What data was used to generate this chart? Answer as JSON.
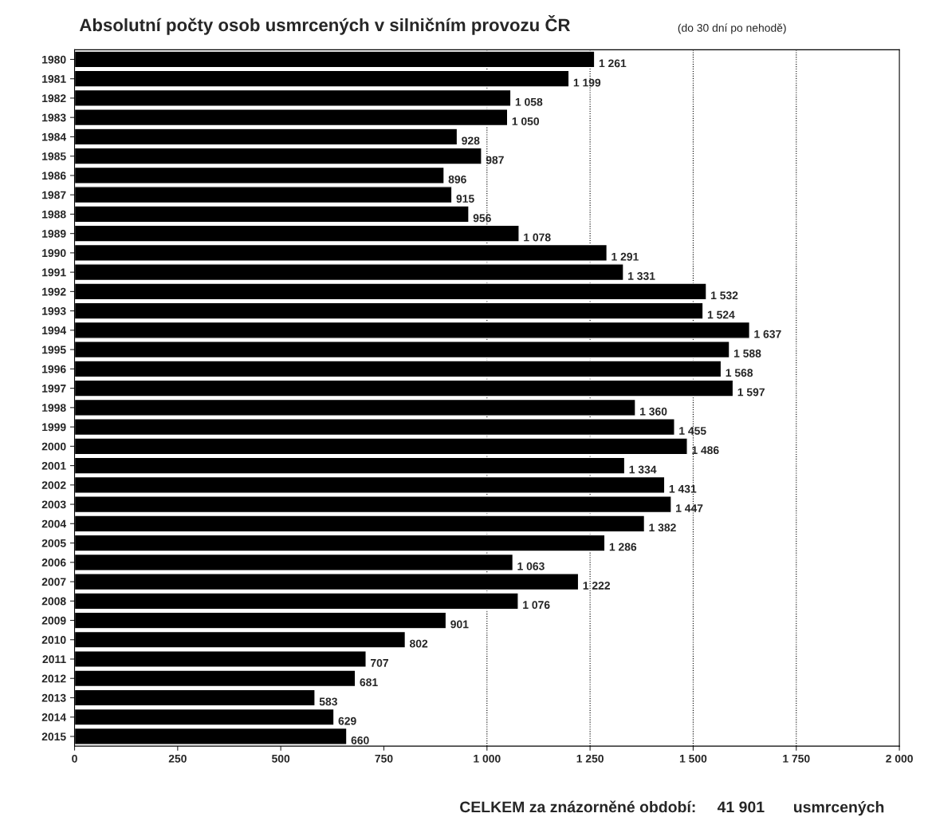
{
  "chart_data": {
    "type": "bar",
    "orientation": "horizontal",
    "title": "Absolutní počty osob usmrcených v silničním provozu ČR",
    "subtitle": "(do 30 dní po nehodě)",
    "categories": [
      "1980",
      "1981",
      "1982",
      "1983",
      "1984",
      "1985",
      "1986",
      "1987",
      "1988",
      "1989",
      "1990",
      "1991",
      "1992",
      "1993",
      "1994",
      "1995",
      "1996",
      "1997",
      "1998",
      "1999",
      "2000",
      "2001",
      "2002",
      "2003",
      "2004",
      "2005",
      "2006",
      "2007",
      "2008",
      "2009",
      "2010",
      "2011",
      "2012",
      "2013",
      "2014",
      "2015"
    ],
    "values": [
      1261,
      1199,
      1058,
      1050,
      928,
      987,
      896,
      915,
      956,
      1078,
      1291,
      1331,
      1532,
      1524,
      1637,
      1588,
      1568,
      1597,
      1360,
      1455,
      1486,
      1334,
      1431,
      1447,
      1382,
      1286,
      1063,
      1222,
      1076,
      901,
      802,
      707,
      681,
      583,
      629,
      660
    ],
    "value_labels": [
      "1 261",
      "1 199",
      "1 058",
      "1 050",
      "928",
      "987",
      "896",
      "915",
      "956",
      "1 078",
      "1 291",
      "1 331",
      "1 532",
      "1 524",
      "1 637",
      "1 588",
      "1 568",
      "1 597",
      "1 360",
      "1 455",
      "1 486",
      "1 334",
      "1 431",
      "1 447",
      "1 382",
      "1 286",
      "1 063",
      "1 222",
      "1 076",
      "901",
      "802",
      "707",
      "681",
      "583",
      "629",
      "660"
    ],
    "color": "#000000",
    "xlim": [
      0,
      2000
    ],
    "xticks": [
      0,
      250,
      500,
      750,
      {
        "value": 1000,
        "label": "1 000"
      },
      {
        "value": 1250,
        "label": "1 250"
      },
      {
        "value": 1500,
        "label": "1 500"
      },
      {
        "value": 1750,
        "label": "1 750"
      },
      {
        "value": 2000,
        "label": "2 000"
      }
    ],
    "ref_lines": [
      {
        "axis": "x",
        "value": 1000,
        "color": "#000000",
        "line_style": "dotted"
      },
      {
        "axis": "x",
        "value": 1250,
        "color": "#000000",
        "line_style": "dotted"
      },
      {
        "axis": "x",
        "value": 1500,
        "color": "#000000",
        "line_style": "dotted"
      },
      {
        "axis": "x",
        "value": 1750,
        "color": "#000000",
        "line_style": "dotted"
      }
    ],
    "annotations": [
      "CELKEM za znázorněné období:",
      "41 901",
      "usmrcených"
    ],
    "grid": false,
    "legend": false
  }
}
